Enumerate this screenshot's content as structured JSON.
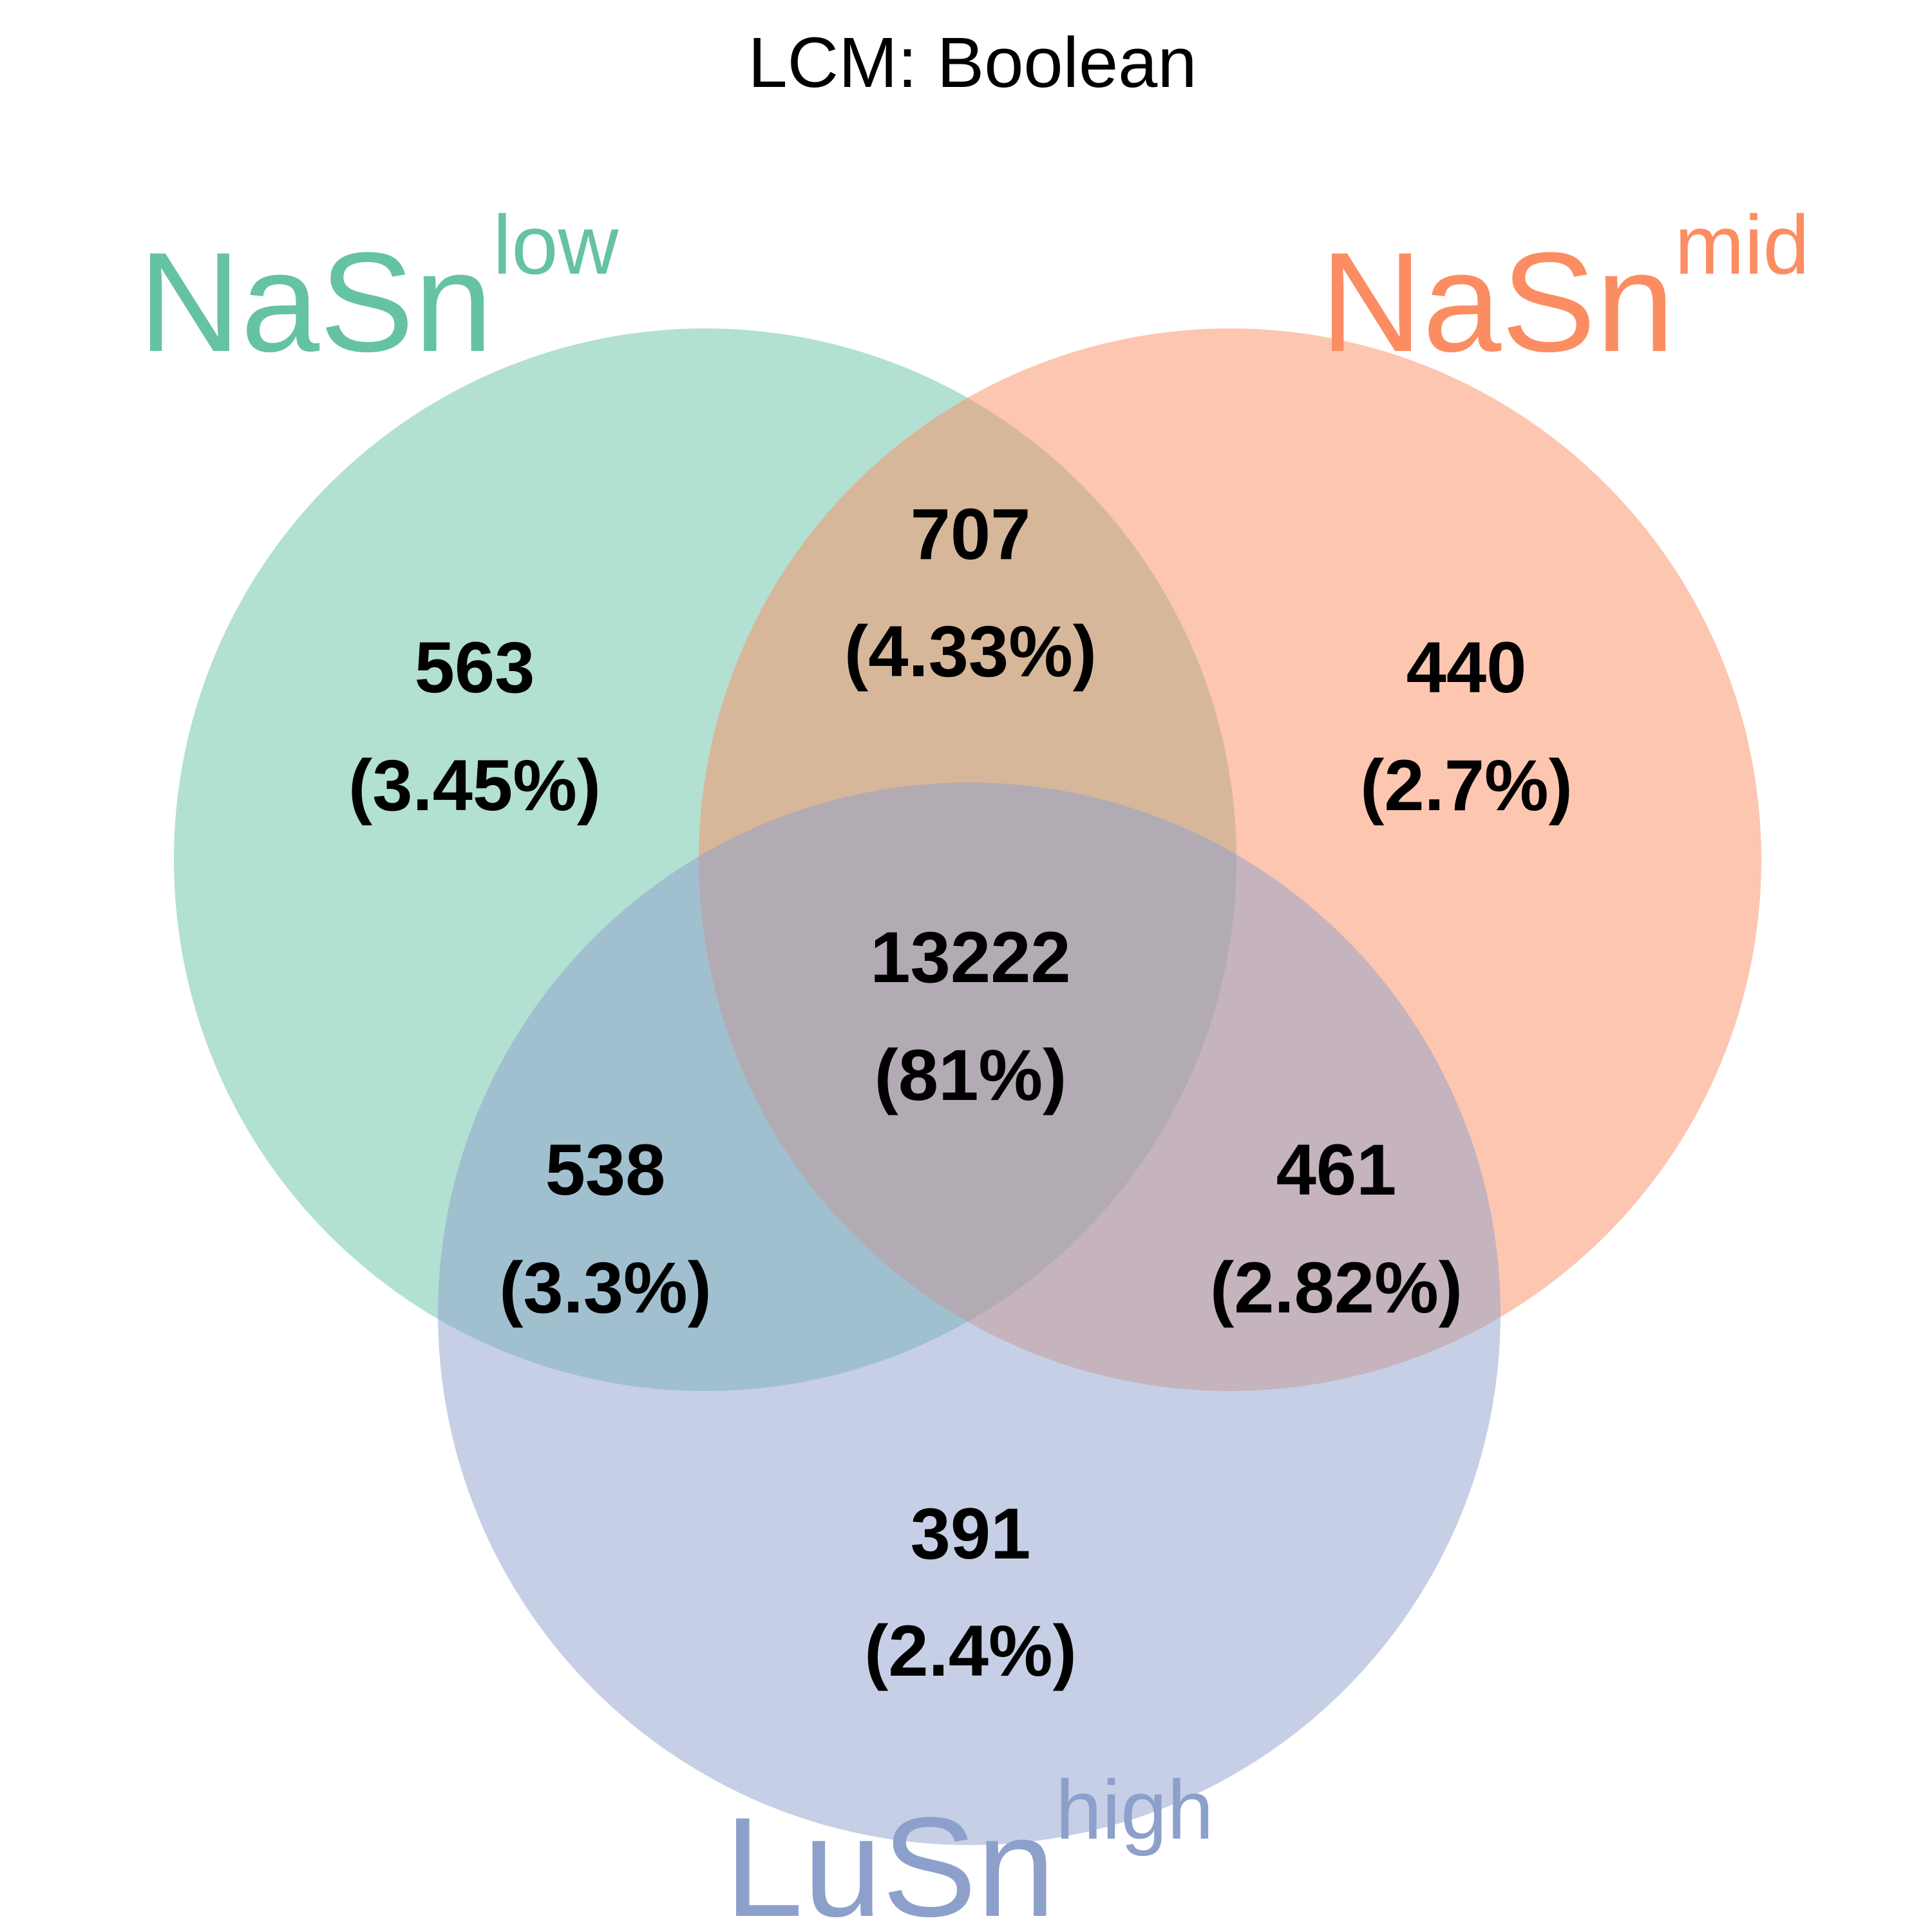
{
  "title": "LCM: Boolean",
  "sets": [
    {
      "key": "low",
      "base": "NaSn",
      "sup": "low",
      "color": "#66C2A5"
    },
    {
      "key": "mid",
      "base": "NaSn",
      "sup": "mid",
      "color": "#FC8D62"
    },
    {
      "key": "high",
      "base": "LuSn",
      "sup": "high",
      "color": "#8DA0CB"
    }
  ],
  "regions": {
    "low_only": {
      "count": "563",
      "percent": "(3.45%)"
    },
    "mid_only": {
      "count": "440",
      "percent": "(2.7%)"
    },
    "high_only": {
      "count": "391",
      "percent": "(2.4%)"
    },
    "low_mid": {
      "count": "707",
      "percent": "(4.33%)"
    },
    "low_high": {
      "count": "538",
      "percent": "(3.3%)"
    },
    "mid_high": {
      "count": "461",
      "percent": "(2.82%)"
    },
    "all": {
      "count": "13222",
      "percent": "(81%)"
    }
  }
}
